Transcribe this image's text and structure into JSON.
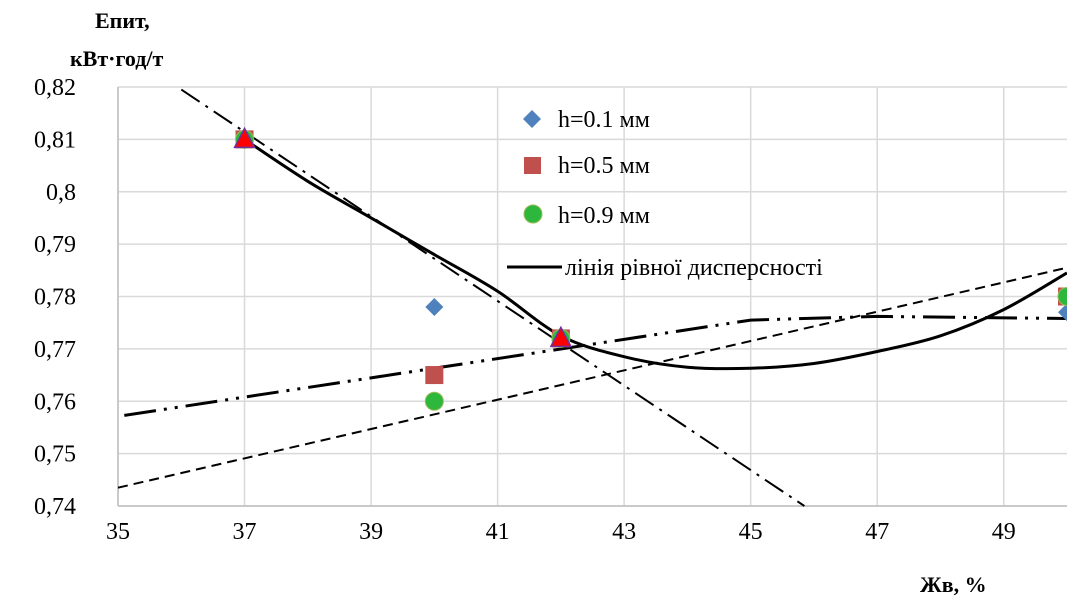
{
  "chart_data": {
    "type": "scatter",
    "ylabel": [
      "Епит,",
      "кВт·год/т"
    ],
    "xlabel": "Жв, %",
    "xlim": [
      35,
      50
    ],
    "ylim": [
      0.74,
      0.82
    ],
    "xticks": [
      "35",
      "37",
      "39",
      "41",
      "43",
      "45",
      "47",
      "49"
    ],
    "yticks": [
      "0,74",
      "0,75",
      "0,76",
      "0,77",
      "0,78",
      "0,79",
      "0,8",
      "0,81",
      "0,82"
    ],
    "grid": "horizontal and vertical",
    "legend_position": "top-center",
    "series": [
      {
        "name": "h=0.1 мм",
        "marker": "diamond",
        "color": "#4F81BD",
        "points": [
          [
            37,
            0.81
          ],
          [
            40,
            0.778
          ],
          [
            42,
            0.772
          ],
          [
            50,
            0.777
          ]
        ]
      },
      {
        "name": "h=0.5 мм",
        "marker": "square",
        "color": "#C0504D",
        "points": [
          [
            37,
            0.81
          ],
          [
            40,
            0.765
          ],
          [
            42,
            0.772
          ],
          [
            50,
            0.78
          ]
        ]
      },
      {
        "name": "h=0.9 мм",
        "marker": "circle",
        "color": "#2DB83D",
        "points": [
          [
            37,
            0.81
          ],
          [
            40,
            0.76
          ],
          [
            42,
            0.772
          ],
          [
            50,
            0.78
          ]
        ]
      }
    ],
    "equal_dispersion_line": {
      "name": "лінія рівної дисперсності",
      "points": [
        [
          37,
          0.81
        ],
        [
          38,
          0.802
        ],
        [
          39,
          0.795
        ],
        [
          40,
          0.788
        ],
        [
          41,
          0.781
        ],
        [
          42,
          0.7725
        ],
        [
          43,
          0.7685
        ],
        [
          44,
          0.7665
        ],
        [
          45,
          0.7663
        ],
        [
          46,
          0.7672
        ],
        [
          47,
          0.7695
        ],
        [
          48,
          0.7725
        ],
        [
          49,
          0.7775
        ],
        [
          50,
          0.7845
        ]
      ]
    },
    "markers": [
      {
        "shape": "triangle",
        "color": "#FF0000",
        "points": [
          [
            37,
            0.81
          ],
          [
            42,
            0.772
          ]
        ]
      }
    ],
    "trend_lines": [
      {
        "style": "dash-dot",
        "points": [
          [
            36,
            0.8195
          ],
          [
            45.85,
            0.74
          ]
        ]
      },
      {
        "style": "long-dash-dot-dot",
        "points": [
          [
            35.1,
            0.7573
          ],
          [
            45,
            0.7755
          ],
          [
            47,
            0.7762
          ],
          [
            50,
            0.7758
          ]
        ]
      },
      {
        "style": "short-dash",
        "points": [
          [
            35,
            0.7435
          ],
          [
            50,
            0.7855
          ]
        ]
      }
    ]
  }
}
